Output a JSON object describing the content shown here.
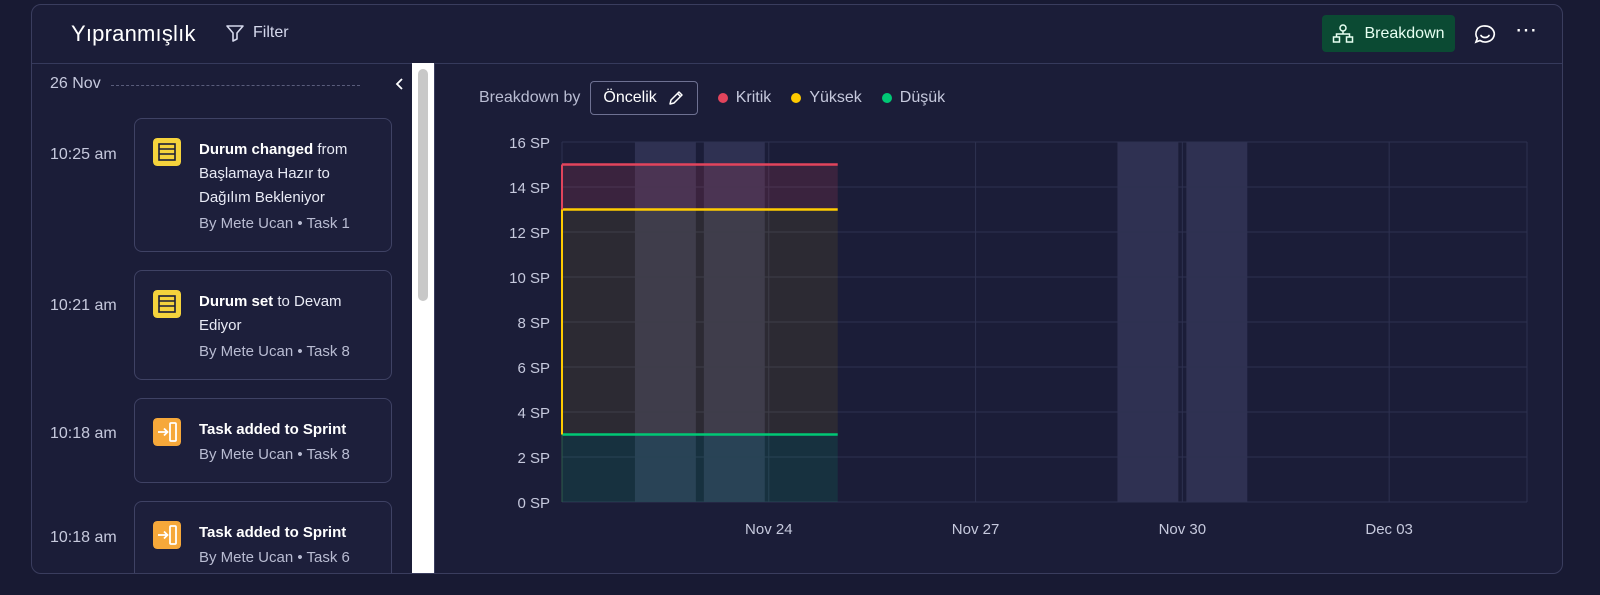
{
  "header": {
    "title": "Yıpranmışlık",
    "filter_label": "Filter",
    "breakdown_label": "Breakdown",
    "more_label": "⋯"
  },
  "activity": {
    "date": "26 Nov",
    "entries": [
      {
        "time": "10:25 am",
        "bold": "Durum changed",
        "rest": " from Başlamaya Hazır to Dağılım Bekleniyor",
        "by": "By Mete Ucan • Task 1",
        "icon": "list-icon",
        "icon_color": "#f5d33c"
      },
      {
        "time": "10:21 am",
        "bold": "Durum set",
        "rest": " to Devam Ediyor",
        "by": "By Mete Ucan • Task 8",
        "icon": "list-icon",
        "icon_color": "#f5d33c"
      },
      {
        "time": "10:18 am",
        "bold": "Task added to Sprint",
        "rest": "",
        "by": "By Mete Ucan • Task 8",
        "icon": "enter-icon",
        "icon_color": "#f6a83a"
      },
      {
        "time": "10:18 am",
        "bold": "Task added to Sprint",
        "rest": "",
        "by": "By Mete Ucan • Task 6",
        "icon": "enter-icon",
        "icon_color": "#f6a83a"
      }
    ]
  },
  "breakdown": {
    "label": "Breakdown by",
    "selected": "Öncelik",
    "legend": [
      {
        "name": "Kritik",
        "color": "#e2445c"
      },
      {
        "name": "Yüksek",
        "color": "#ffcb00"
      },
      {
        "name": "Düşük",
        "color": "#00c875"
      }
    ]
  },
  "chart_data": {
    "type": "area",
    "ylim": [
      0,
      16
    ],
    "y_ticks": [
      "0 SP",
      "2 SP",
      "4 SP",
      "6 SP",
      "8 SP",
      "10 SP",
      "12 SP",
      "14 SP",
      "16 SP"
    ],
    "x_ticks": [
      "Nov 24",
      "Nov 27",
      "Nov 30",
      "Dec 03"
    ],
    "x_range": [
      "2024-11-21",
      "2024-12-05"
    ],
    "series": [
      {
        "name": "Kritik",
        "color": "#e2445c",
        "x": [
          "2024-11-21",
          "2024-11-25"
        ],
        "values": [
          15,
          15
        ]
      },
      {
        "name": "Yüksek",
        "color": "#ffcb00",
        "x": [
          "2024-11-21",
          "2024-11-25"
        ],
        "values": [
          13,
          13
        ]
      },
      {
        "name": "Düşük",
        "color": "#00c875",
        "x": [
          "2024-11-21",
          "2024-11-25"
        ],
        "values": [
          3,
          3
        ]
      }
    ],
    "weekend_bands": [
      [
        "2024-11-22",
        "2024-11-23"
      ],
      [
        "2024-11-23",
        "2024-11-24"
      ],
      [
        "2024-11-29",
        "2024-11-30"
      ],
      [
        "2024-11-30",
        "2024-12-01"
      ]
    ]
  }
}
